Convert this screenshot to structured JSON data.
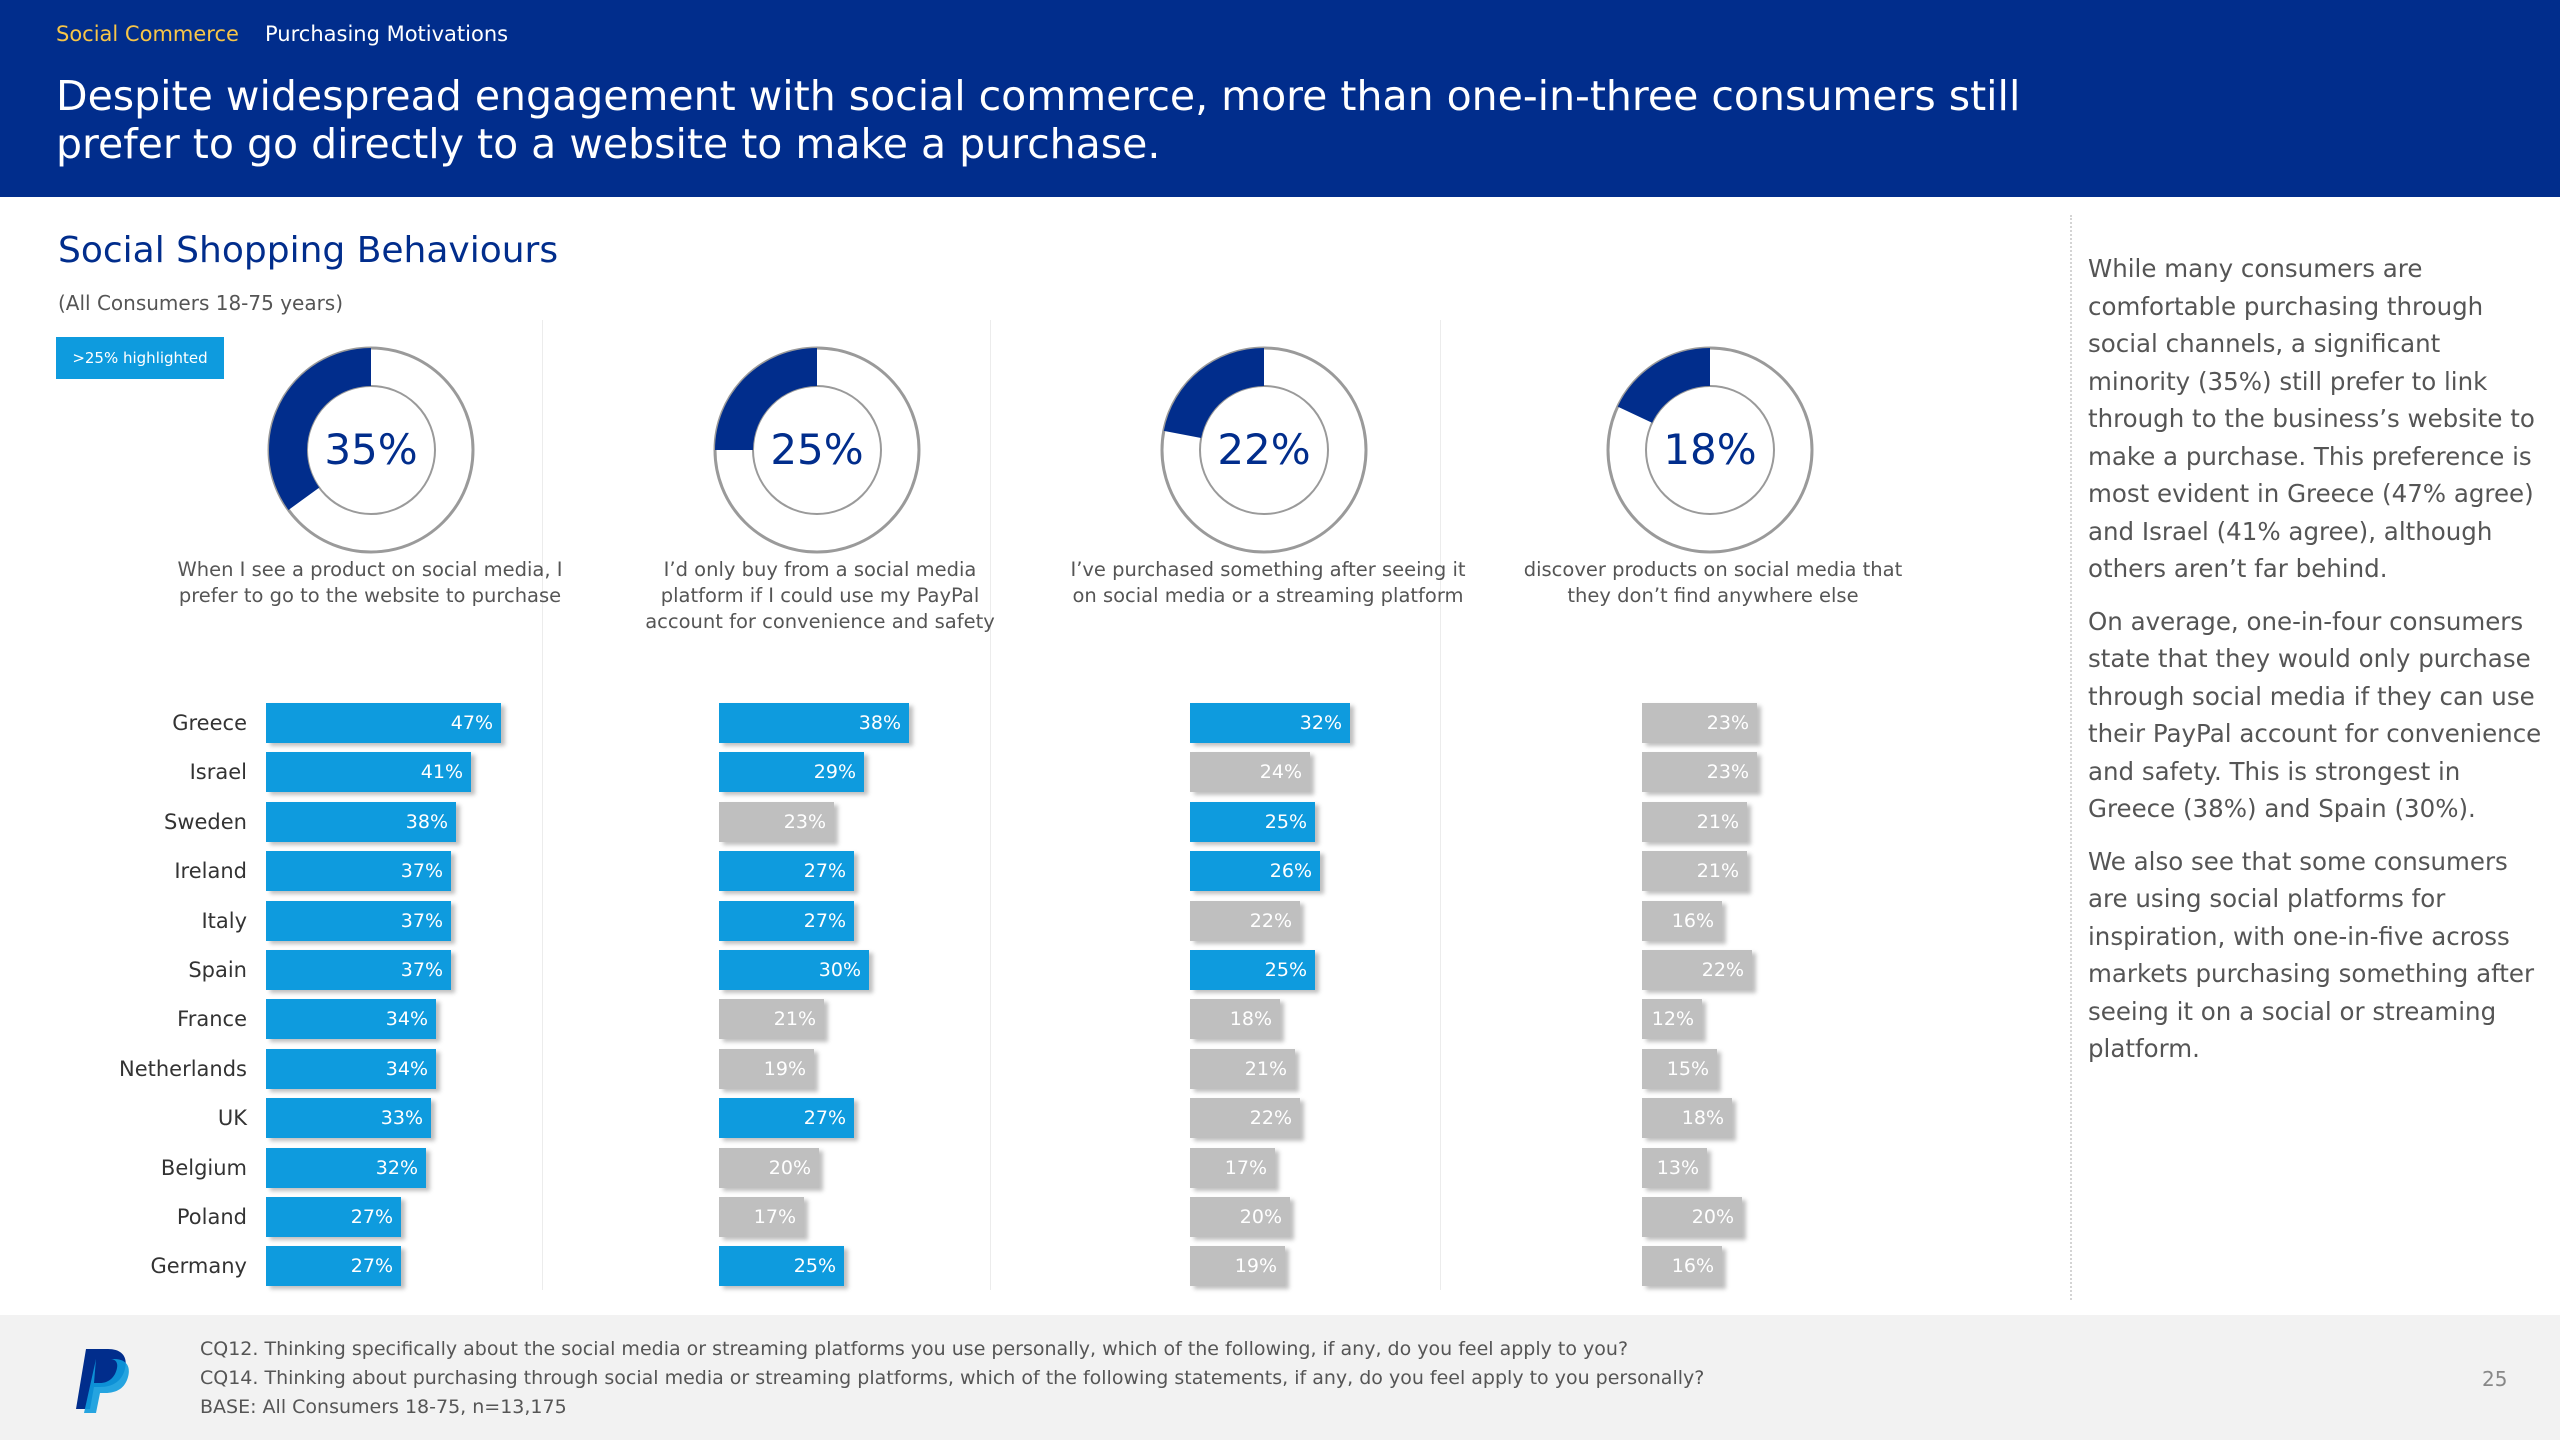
{
  "header": {
    "breadcrumb_section": "Social Commerce",
    "breadcrumb_page": "Purchasing Motivations",
    "headline": "Despite widespread engagement with social commerce, more than one-in-three consumers still prefer to go directly to a website to make a purchase."
  },
  "section": {
    "title": "Social Shopping Behaviours",
    "subtitle": "(All Consumers 18-75 years)",
    "legend_label": ">25% highlighted"
  },
  "colors": {
    "brand_navy": "#012d8c",
    "highlight_blue": "#0e9bde",
    "neutral_grey": "#bfbfbf",
    "accent_yellow": "#f7c548"
  },
  "chart_data": {
    "type": "bar",
    "orientation": "horizontal",
    "highlight_rule": ">25% highlighted",
    "categories": [
      "Greece",
      "Israel",
      "Sweden",
      "Ireland",
      "Italy",
      "Spain",
      "France",
      "Netherlands",
      "UK",
      "Belgium",
      "Poland",
      "Germany"
    ],
    "series": [
      {
        "name": "When I see a product on social media, I prefer to go to the website to purchase",
        "total_label": "35%",
        "total": 35,
        "values": [
          47,
          41,
          38,
          37,
          37,
          37,
          34,
          34,
          33,
          32,
          27,
          27
        ],
        "labels": [
          "47%",
          "41%",
          "38%",
          "37%",
          "37%",
          "37%",
          "34%",
          "34%",
          "33%",
          "32%",
          "27%",
          "27%"
        ],
        "highlighted": [
          true,
          true,
          true,
          true,
          true,
          true,
          true,
          true,
          true,
          true,
          true,
          true
        ]
      },
      {
        "name": "I’d only buy from a social media platform if I could use my PayPal account for convenience and safety",
        "total_label": "25%",
        "total": 25,
        "values": [
          38,
          29,
          23,
          27,
          27,
          30,
          21,
          19,
          27,
          20,
          17,
          25
        ],
        "labels": [
          "38%",
          "29%",
          "23%",
          "27%",
          "27%",
          "30%",
          "21%",
          "19%",
          "27%",
          "20%",
          "17%",
          "25%"
        ],
        "highlighted": [
          true,
          true,
          false,
          true,
          true,
          true,
          false,
          false,
          true,
          false,
          false,
          true
        ]
      },
      {
        "name": "I’ve purchased something after seeing it on social media or a streaming platform",
        "total_label": "22%",
        "total": 22,
        "values": [
          32,
          24,
          25,
          26,
          22,
          25,
          18,
          21,
          22,
          17,
          20,
          19
        ],
        "labels": [
          "32%",
          "24%",
          "25%",
          "26%",
          "22%",
          "25%",
          "18%",
          "21%",
          "22%",
          "17%",
          "20%",
          "19%"
        ],
        "highlighted": [
          true,
          false,
          true,
          true,
          false,
          true,
          false,
          false,
          false,
          false,
          false,
          false
        ]
      },
      {
        "name": "discover products on social media that they don’t find anywhere else",
        "total_label": "18%",
        "total": 18,
        "values": [
          23,
          23,
          21,
          21,
          16,
          22,
          12,
          15,
          18,
          13,
          20,
          16
        ],
        "labels": [
          "23%",
          "23%",
          "21%",
          "21%",
          "16%",
          "22%",
          "12%",
          "15%",
          "18%",
          "13%",
          "20%",
          "16%"
        ],
        "highlighted": [
          false,
          false,
          false,
          false,
          false,
          false,
          false,
          false,
          false,
          false,
          false,
          false
        ]
      }
    ]
  },
  "sidebar": {
    "paragraphs": [
      "While many consumers are comfortable purchasing through social channels, a significant minority (35%) still prefer to link through to the business’s website to make a purchase. This preference is most evident in Greece (47% agree) and Israel (41% agree), although others aren’t far behind.",
      "On average, one-in-four consumers state that they would only purchase through social media if they can use their PayPal account for convenience and safety. This is strongest in Greece (38%) and Spain (30%).",
      "We also see that some consumers are using social platforms for inspiration, with one-in-five across markets purchasing something after seeing it on a social or streaming platform."
    ]
  },
  "footer": {
    "notes": [
      "CQ12. Thinking specifically about the social media or streaming platforms you use personally, which of the following, if any, do you feel apply to you?",
      "CQ14. Thinking about purchasing through social media or streaming platforms, which of the following statements, if any, do you feel apply to you personally?",
      "BASE: All Consumers 18-75, n=13,175"
    ],
    "page_number": "25",
    "logo_icon": "paypal-logo-icon"
  }
}
